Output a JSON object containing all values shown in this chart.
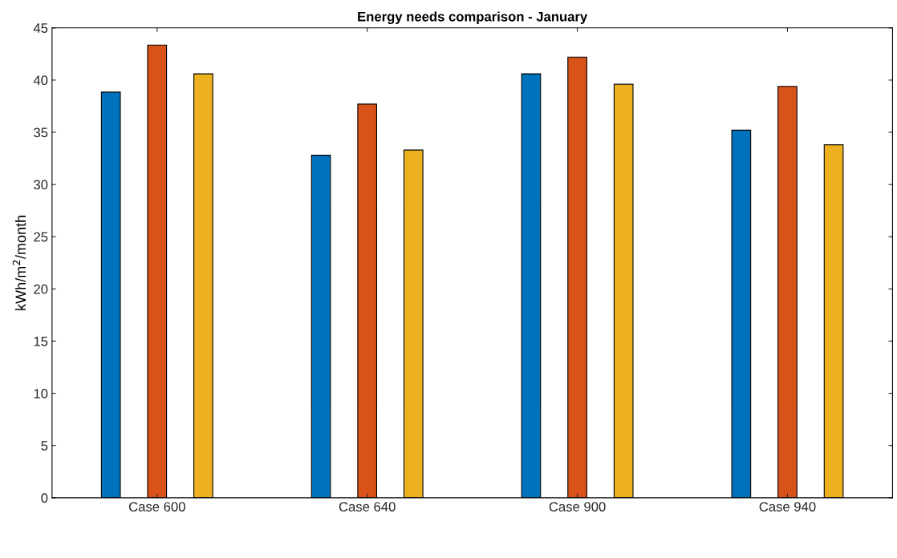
{
  "chart_data": {
    "type": "bar",
    "title": "Energy needs comparison - January",
    "ylabel": "kWh/m$^{2}$/month",
    "categories": [
      "Case 600",
      "Case 640",
      "Case 900",
      "Case 940"
    ],
    "series": [
      {
        "color": "#0072bd",
        "values": [
          38.85,
          32.8,
          40.6,
          35.2
        ]
      },
      {
        "color": "#d95319",
        "values": [
          43.35,
          37.7,
          42.2,
          39.4
        ]
      },
      {
        "color": "#edb120",
        "values": [
          40.6,
          33.3,
          39.6,
          33.8
        ]
      }
    ],
    "ylim": [
      0,
      45
    ],
    "yticks": [
      0,
      5,
      10,
      15,
      20,
      25,
      30,
      35,
      40,
      45
    ],
    "grid": false
  }
}
